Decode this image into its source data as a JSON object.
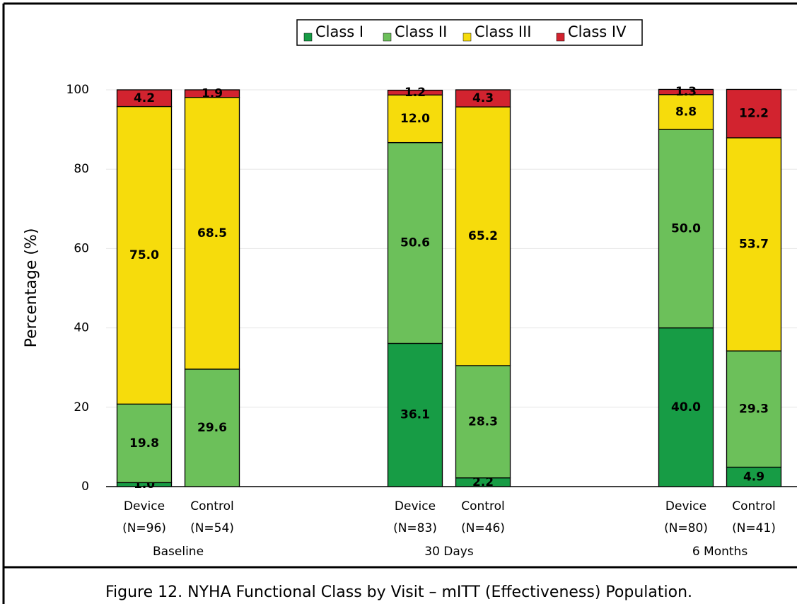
{
  "chart_data": {
    "type": "stacked-bar",
    "caption": "Figure 12. NYHA Functional Class by Visit – mITT (Effectiveness) Population.",
    "ylabel": "Percentage (%)",
    "categories": [
      [
        "Device",
        "(N=96)"
      ],
      [
        "Control",
        "(N=54)"
      ],
      [
        "Device",
        "(N=83)"
      ],
      [
        "Control",
        "(N=46)"
      ],
      [
        "Device",
        "(N=80)"
      ],
      [
        "Control",
        "(N=41)"
      ]
    ],
    "groups": [
      "Baseline",
      "30 Days",
      "6 Months"
    ],
    "series": [
      {
        "name": "Class I",
        "color": "#179c45",
        "values": [
          1.0,
          null,
          36.1,
          2.2,
          40.0,
          4.9
        ],
        "value_labels": [
          "1.0",
          null,
          "36.1",
          "2.2",
          "40.0",
          "4.9"
        ]
      },
      {
        "name": "Class II",
        "color": "#6cc05a",
        "values": [
          19.8,
          29.6,
          50.6,
          28.3,
          50.0,
          29.3
        ],
        "value_labels": [
          "19.8",
          "29.6",
          "50.6",
          "28.3",
          "50.0",
          "29.3"
        ]
      },
      {
        "name": "Class III",
        "color": "#f6dc0c",
        "values": [
          75.0,
          68.5,
          12.0,
          65.2,
          8.8,
          53.7
        ],
        "value_labels": [
          "75.0",
          "68.5",
          "12.0",
          "65.2",
          "8.8",
          "53.7"
        ]
      },
      {
        "name": "Class IV",
        "color": "#d2232f",
        "values": [
          4.2,
          1.9,
          1.2,
          4.3,
          1.3,
          12.2
        ],
        "value_labels": [
          "4.2",
          "1.9",
          "1.2",
          "4.3",
          "1.3",
          "12.2"
        ]
      }
    ],
    "ylim": [
      0,
      100
    ],
    "yticks": [
      0,
      20,
      40,
      60,
      80,
      100
    ],
    "grid": true,
    "legend": "top"
  }
}
